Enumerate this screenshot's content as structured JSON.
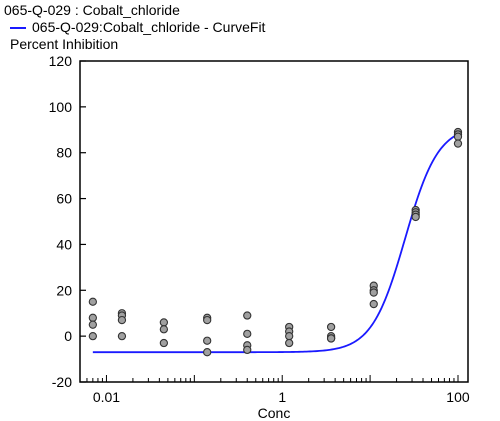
{
  "chart_data": {
    "type": "scatter",
    "legend": {
      "points_label": "065-Q-029  : Cobalt_chloride",
      "curve_label": "065-Q-029:Cobalt_chloride - CurveFit"
    },
    "ylabel": "Percent Inhibition",
    "xlabel": "Conc",
    "x_scale": "log",
    "xlim": [
      0.005,
      130
    ],
    "ylim": [
      -20,
      120
    ],
    "x_ticks": [
      {
        "value": 0.01,
        "label": "0.01"
      },
      {
        "value": 1,
        "label": "1"
      },
      {
        "value": 100,
        "label": "100"
      }
    ],
    "y_ticks": [
      -20,
      0,
      20,
      40,
      60,
      80,
      100,
      120
    ],
    "grid": false,
    "colors": {
      "curve": "#1a1aff",
      "points": "#a0a0a0",
      "point_edge": "#333333"
    },
    "series": [
      {
        "type": "points",
        "x": [
          0.007,
          0.007,
          0.007,
          0.007,
          0.015,
          0.015,
          0.015,
          0.015,
          0.045,
          0.045,
          0.045,
          0.14,
          0.14,
          0.14,
          0.14,
          0.4,
          0.4,
          0.4,
          0.4,
          1.2,
          1.2,
          1.2,
          1.2,
          3.6,
          3.6,
          3.6,
          3.6,
          11,
          11,
          11,
          11,
          33,
          33,
          33,
          33,
          100,
          100,
          100,
          100
        ],
        "y": [
          15,
          8,
          5,
          0,
          10,
          9,
          7,
          0,
          6,
          3,
          -3,
          8,
          7,
          -2,
          -7,
          9,
          1,
          -4,
          -6,
          4,
          2,
          0,
          -3,
          4,
          0,
          -1,
          -1,
          22,
          20,
          19,
          14,
          55,
          54,
          53,
          52,
          89,
          88,
          87,
          84
        ]
      },
      {
        "type": "curve",
        "model": "4PL",
        "bottom": -7,
        "top": 92,
        "ec50": 25,
        "hill": 2.3
      }
    ]
  }
}
